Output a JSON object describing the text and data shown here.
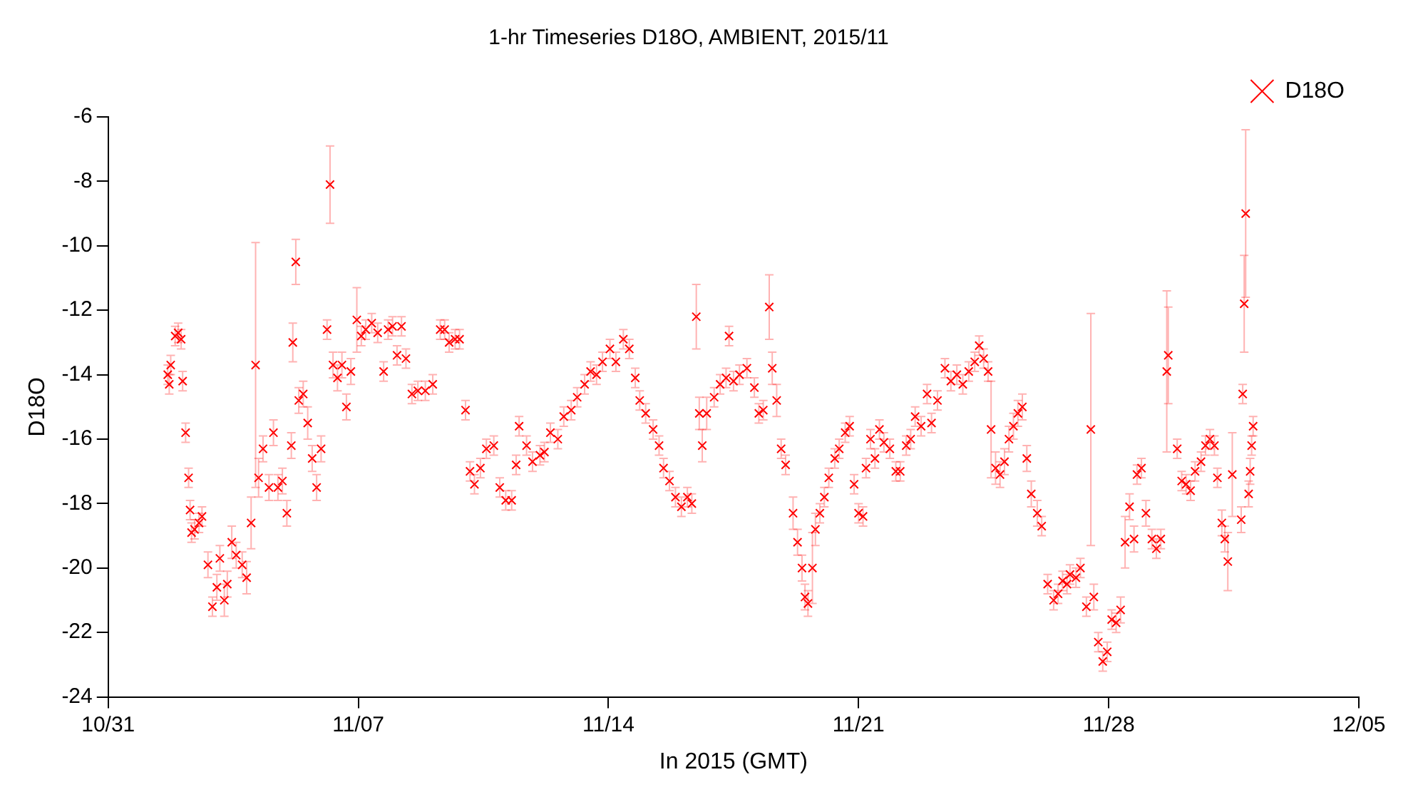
{
  "chart_data": {
    "type": "scatter",
    "title": "1-hr Timeseries D18O, AMBIENT, 2015/11",
    "xlabel": "In 2015 (GMT)",
    "ylabel": "D18O",
    "xlim": [
      "2015-10-31",
      "2015-12-05"
    ],
    "xticks": [
      {
        "value": "2015-10-31",
        "label": "10/31"
      },
      {
        "value": "2015-11-07",
        "label": "11/07"
      },
      {
        "value": "2015-11-14",
        "label": "11/14"
      },
      {
        "value": "2015-11-21",
        "label": "11/21"
      },
      {
        "value": "2015-11-28",
        "label": "11/28"
      },
      {
        "value": "2015-12-05",
        "label": "12/05"
      }
    ],
    "ylim": [
      -24,
      -6
    ],
    "yticks": [
      -24,
      -22,
      -20,
      -18,
      -16,
      -14,
      -12,
      -10,
      -8,
      -6
    ],
    "grid": false,
    "legend": "top right",
    "marker": "cross",
    "series": [
      {
        "name": "D18O",
        "color": "#ff0000",
        "x": [
          "2015-11-01T16:00",
          "2015-11-01T17:00",
          "2015-11-01T18:00",
          "2015-11-01T21:00",
          "2015-11-01T23:00",
          "2015-11-02T01:00",
          "2015-11-02T02:00",
          "2015-11-02T04:00",
          "2015-11-02T06:00",
          "2015-11-02T07:00",
          "2015-11-02T08:00",
          "2015-11-02T10:00",
          "2015-11-02T13:00",
          "2015-11-02T15:00",
          "2015-11-02T19:00",
          "2015-11-02T22:00",
          "2015-11-03T01:00",
          "2015-11-03T03:00",
          "2015-11-03T06:00",
          "2015-11-03T08:00",
          "2015-11-03T11:00",
          "2015-11-03T14:00",
          "2015-11-03T18:00",
          "2015-11-03T21:00",
          "2015-11-04T00:00",
          "2015-11-04T03:00",
          "2015-11-04T05:00",
          "2015-11-04T08:00",
          "2015-11-04T12:00",
          "2015-11-04T15:00",
          "2015-11-04T18:00",
          "2015-11-04T21:00",
          "2015-11-05T00:00",
          "2015-11-05T03:00",
          "2015-11-05T04:00",
          "2015-11-05T06:00",
          "2015-11-05T08:00",
          "2015-11-05T11:00",
          "2015-11-05T14:00",
          "2015-11-05T17:00",
          "2015-11-05T20:00",
          "2015-11-05T23:00",
          "2015-11-06T03:00",
          "2015-11-06T05:00",
          "2015-11-06T07:00",
          "2015-11-06T10:00",
          "2015-11-06T13:00",
          "2015-11-06T16:00",
          "2015-11-06T19:00",
          "2015-11-06T23:00",
          "2015-11-07T02:00",
          "2015-11-07T05:00",
          "2015-11-07T09:00",
          "2015-11-07T13:00",
          "2015-11-07T17:00",
          "2015-11-07T20:00",
          "2015-11-07T23:00",
          "2015-11-08T02:00",
          "2015-11-08T05:00",
          "2015-11-08T08:00",
          "2015-11-08T12:00",
          "2015-11-08T16:00",
          "2015-11-08T21:00",
          "2015-11-09T02:00",
          "2015-11-09T07:00",
          "2015-11-09T10:00",
          "2015-11-09T13:00",
          "2015-11-09T17:00",
          "2015-11-09T20:00",
          "2015-11-10T00:00",
          "2015-11-10T03:00",
          "2015-11-10T06:00",
          "2015-11-10T10:00",
          "2015-11-10T14:00",
          "2015-11-10T19:00",
          "2015-11-10T23:00",
          "2015-11-11T03:00",
          "2015-11-11T07:00",
          "2015-11-11T10:00",
          "2015-11-11T12:00",
          "2015-11-11T17:00",
          "2015-11-11T21:00",
          "2015-11-12T02:00",
          "2015-11-12T05:00",
          "2015-11-12T09:00",
          "2015-11-12T14:00",
          "2015-11-12T18:00",
          "2015-11-12T23:00",
          "2015-11-13T03:00",
          "2015-11-13T08:00",
          "2015-11-13T12:00",
          "2015-11-13T16:00",
          "2015-11-13T20:00",
          "2015-11-14T01:00",
          "2015-11-14T05:00",
          "2015-11-14T10:00",
          "2015-11-14T14:00",
          "2015-11-14T18:00",
          "2015-11-14T21:00",
          "2015-11-15T01:00",
          "2015-11-15T06:00",
          "2015-11-15T10:00",
          "2015-11-15T13:00",
          "2015-11-15T17:00",
          "2015-11-15T21:00",
          "2015-11-16T01:00",
          "2015-11-16T05:00",
          "2015-11-16T08:00",
          "2015-11-16T11:00",
          "2015-11-16T13:00",
          "2015-11-16T15:00",
          "2015-11-16T18:00",
          "2015-11-16T23:00",
          "2015-11-17T03:00",
          "2015-11-17T07:00",
          "2015-11-17T09:00",
          "2015-11-17T12:00",
          "2015-11-17T16:00",
          "2015-11-17T21:00",
          "2015-11-18T02:00",
          "2015-11-18T05:00",
          "2015-11-18T08:00",
          "2015-11-18T12:00",
          "2015-11-18T14:00",
          "2015-11-18T17:00",
          "2015-11-18T20:00",
          "2015-11-18T23:00",
          "2015-11-19T04:00",
          "2015-11-19T07:00",
          "2015-11-19T10:00",
          "2015-11-19T12:00",
          "2015-11-19T14:00",
          "2015-11-19T17:00",
          "2015-11-19T19:00",
          "2015-11-19T22:00",
          "2015-11-20T01:00",
          "2015-11-20T04:00",
          "2015-11-20T08:00",
          "2015-11-20T11:00",
          "2015-11-20T15:00",
          "2015-11-20T18:00",
          "2015-11-20T21:00",
          "2015-11-21T00:00",
          "2015-11-21T03:00",
          "2015-11-21T05:00",
          "2015-11-21T08:00",
          "2015-11-21T11:00",
          "2015-11-21T14:00",
          "2015-11-21T17:00",
          "2015-11-21T21:00",
          "2015-11-22T01:00",
          "2015-11-22T04:00",
          "2015-11-22T08:00",
          "2015-11-22T11:00",
          "2015-11-22T14:00",
          "2015-11-22T18:00",
          "2015-11-22T22:00",
          "2015-11-23T01:00",
          "2015-11-23T05:00",
          "2015-11-23T10:00",
          "2015-11-23T14:00",
          "2015-11-23T18:00",
          "2015-11-23T22:00",
          "2015-11-24T02:00",
          "2015-11-24T06:00",
          "2015-11-24T09:00",
          "2015-11-24T12:00",
          "2015-11-24T15:00",
          "2015-11-24T17:00",
          "2015-11-24T20:00",
          "2015-11-24T23:00",
          "2015-11-25T02:00",
          "2015-11-25T05:00",
          "2015-11-25T08:00",
          "2015-11-25T11:00",
          "2015-11-25T14:00",
          "2015-11-25T17:00",
          "2015-11-25T20:00",
          "2015-11-26T00:00",
          "2015-11-26T03:00",
          "2015-11-26T07:00",
          "2015-11-26T11:00",
          "2015-11-26T14:00",
          "2015-11-26T17:00",
          "2015-11-26T20:00",
          "2015-11-26T22:00",
          "2015-11-27T02:00",
          "2015-11-27T05:00",
          "2015-11-27T09:00",
          "2015-11-27T12:00",
          "2015-11-27T14:00",
          "2015-11-27T17:00",
          "2015-11-27T20:00",
          "2015-11-27T23:00",
          "2015-11-28T02:00",
          "2015-11-28T05:00",
          "2015-11-28T08:00",
          "2015-11-28T11:00",
          "2015-11-28T14:00",
          "2015-11-28T17:00",
          "2015-11-28T19:00",
          "2015-11-28T22:00",
          "2015-11-29T01:00",
          "2015-11-29T05:00",
          "2015-11-29T08:00",
          "2015-11-29T11:00",
          "2015-11-29T15:00",
          "2015-11-29T16:00",
          "2015-11-29T22:00",
          "2015-11-30T01:00",
          "2015-11-30T04:00",
          "2015-11-30T07:00",
          "2015-11-30T10:00",
          "2015-11-30T14:00",
          "2015-11-30T17:00",
          "2015-11-30T20:00",
          "2015-11-30T23:00",
          "2015-12-01T01:00",
          "2015-12-01T04:00",
          "2015-12-01T06:00",
          "2015-12-01T08:00",
          "2015-12-01T11:00",
          "2015-12-01T17:00",
          "2015-12-01T18:00",
          "2015-12-01T19:00",
          "2015-12-01T20:00",
          "2015-12-01T22:00",
          "2015-12-01T23:00",
          "2015-12-02T00:00",
          "2015-12-02T01:00"
        ],
        "values": [
          -14.0,
          -14.3,
          -13.7,
          -12.8,
          -12.7,
          -12.9,
          -14.2,
          -15.8,
          -17.2,
          -18.2,
          -18.9,
          -18.8,
          -18.6,
          -18.4,
          -19.9,
          -21.2,
          -20.6,
          -19.7,
          -21.0,
          -20.5,
          -19.2,
          -19.6,
          -19.9,
          -20.3,
          -18.6,
          -13.7,
          -17.2,
          -16.3,
          -17.5,
          -15.8,
          -17.5,
          -17.3,
          -18.3,
          -16.2,
          -13.0,
          -10.5,
          -14.8,
          -14.6,
          -15.5,
          -16.6,
          -17.5,
          -16.3,
          -12.6,
          -8.1,
          -13.7,
          -14.1,
          -13.7,
          -15.0,
          -13.9,
          -12.3,
          -12.8,
          -12.6,
          -12.4,
          -12.7,
          -13.9,
          -12.6,
          -12.5,
          -13.4,
          -12.5,
          -13.5,
          -14.6,
          -14.5,
          -14.5,
          -14.3,
          -12.6,
          -12.6,
          -13.0,
          -12.9,
          -12.9,
          -15.1,
          -17.0,
          -17.4,
          -16.9,
          -16.3,
          -16.2,
          -17.5,
          -17.9,
          -17.9,
          -16.8,
          -15.6,
          -16.2,
          -16.7,
          -16.5,
          -16.4,
          -15.8,
          -16.0,
          -15.3,
          -15.1,
          -14.7,
          -14.3,
          -13.9,
          -14.0,
          -13.6,
          -13.2,
          -13.6,
          -12.9,
          -13.2,
          -14.1,
          -14.8,
          -15.2,
          -15.7,
          -16.2,
          -16.9,
          -17.3,
          -17.8,
          -18.1,
          -17.8,
          -18.0,
          -12.2,
          -15.2,
          -16.2,
          -15.2,
          -14.7,
          -14.3,
          -14.1,
          -12.8,
          -14.2,
          -14.0,
          -13.8,
          -14.4,
          -15.2,
          -15.1,
          -11.9,
          -13.8,
          -14.8,
          -16.3,
          -16.8,
          -18.3,
          -19.2,
          -20.0,
          -20.9,
          -21.1,
          -20.0,
          -18.8,
          -18.3,
          -17.8,
          -17.2,
          -16.6,
          -16.3,
          -15.8,
          -15.6,
          -17.4,
          -18.3,
          -18.4,
          -16.9,
          -16.0,
          -16.6,
          -15.7,
          -16.1,
          -16.3,
          -17.0,
          -17.0,
          -16.2,
          -16.0,
          -15.3,
          -15.6,
          -14.6,
          -15.5,
          -14.8,
          -13.8,
          -14.2,
          -14.0,
          -14.3,
          -13.9,
          -13.6,
          -13.1,
          -13.5,
          -13.9,
          -15.7,
          -16.9,
          -17.1,
          -16.7,
          -16.0,
          -15.6,
          -15.2,
          -15.0,
          -16.6,
          -17.7,
          -18.3,
          -18.7,
          -20.5,
          -21.0,
          -20.8,
          -20.4,
          -20.5,
          -20.2,
          -20.3,
          -20.0,
          -21.2,
          -15.7,
          -20.9,
          -22.3,
          -22.9,
          -22.6,
          -21.6,
          -21.7,
          -21.3,
          -19.2,
          -18.1,
          -19.1,
          -17.1,
          -16.9,
          -18.3,
          -19.1,
          -19.4,
          -19.1,
          -13.9,
          -13.4,
          -16.3,
          -17.3,
          -17.4,
          -17.6,
          -17.0,
          -16.7,
          -16.2,
          -16.0,
          -16.2,
          -17.2,
          -18.6,
          -19.1,
          -19.8,
          -17.1,
          -18.5,
          -14.6,
          -11.8,
          -9.0,
          -17.7,
          -17.0,
          -16.2,
          -15.6
        ],
        "errors": [
          0.3,
          0.3,
          0.3,
          0.3,
          0.3,
          0.3,
          0.3,
          0.3,
          0.3,
          0.3,
          0.3,
          0.3,
          0.3,
          0.3,
          0.4,
          0.3,
          0.4,
          0.4,
          0.5,
          0.4,
          0.5,
          0.4,
          0.4,
          0.5,
          0.8,
          3.8,
          0.6,
          0.4,
          0.4,
          0.4,
          0.4,
          0.4,
          0.4,
          0.4,
          0.6,
          0.7,
          0.4,
          0.4,
          0.5,
          0.4,
          0.4,
          0.4,
          0.3,
          1.2,
          0.4,
          0.4,
          0.4,
          0.4,
          0.4,
          1.0,
          0.3,
          0.3,
          0.3,
          0.3,
          0.3,
          0.3,
          0.3,
          0.3,
          0.3,
          0.3,
          0.3,
          0.3,
          0.3,
          0.3,
          0.3,
          0.3,
          0.3,
          0.3,
          0.3,
          0.3,
          0.3,
          0.3,
          0.3,
          0.3,
          0.3,
          0.3,
          0.3,
          0.3,
          0.3,
          0.3,
          0.3,
          0.3,
          0.3,
          0.3,
          0.3,
          0.3,
          0.3,
          0.3,
          0.3,
          0.3,
          0.3,
          0.3,
          0.3,
          0.3,
          0.3,
          0.3,
          0.3,
          0.3,
          0.3,
          0.3,
          0.3,
          0.3,
          0.3,
          0.3,
          0.3,
          0.3,
          0.3,
          0.3,
          1.0,
          0.5,
          0.5,
          0.5,
          0.3,
          0.3,
          0.3,
          0.3,
          0.3,
          0.3,
          0.3,
          0.3,
          0.3,
          0.3,
          1.0,
          0.5,
          0.5,
          0.3,
          0.3,
          0.5,
          0.4,
          0.4,
          0.4,
          0.4,
          1.1,
          0.5,
          0.3,
          0.3,
          0.3,
          0.3,
          0.3,
          0.3,
          0.3,
          0.3,
          0.3,
          0.3,
          0.3,
          0.3,
          0.3,
          0.3,
          0.3,
          0.3,
          0.3,
          0.3,
          0.3,
          0.3,
          0.3,
          0.3,
          0.3,
          0.3,
          0.3,
          0.3,
          0.3,
          0.3,
          0.3,
          0.3,
          0.3,
          0.3,
          0.3,
          0.3,
          1.5,
          0.5,
          0.4,
          0.4,
          0.4,
          0.4,
          0.4,
          0.4,
          0.4,
          0.4,
          0.4,
          0.3,
          0.3,
          0.3,
          0.3,
          0.3,
          0.3,
          0.3,
          0.3,
          0.3,
          0.3,
          3.6,
          0.4,
          0.3,
          0.3,
          0.3,
          0.3,
          0.3,
          0.4,
          0.8,
          0.4,
          0.4,
          0.3,
          0.3,
          0.4,
          0.3,
          0.3,
          0.3,
          2.5,
          1.5,
          0.3,
          0.3,
          0.3,
          0.3,
          0.3,
          0.3,
          0.3,
          0.3,
          0.3,
          0.3,
          0.4,
          0.4,
          0.9,
          1.3,
          0.4,
          0.3,
          1.5,
          2.6,
          0.4,
          0.4,
          0.3,
          0.3
        ]
      }
    ]
  }
}
